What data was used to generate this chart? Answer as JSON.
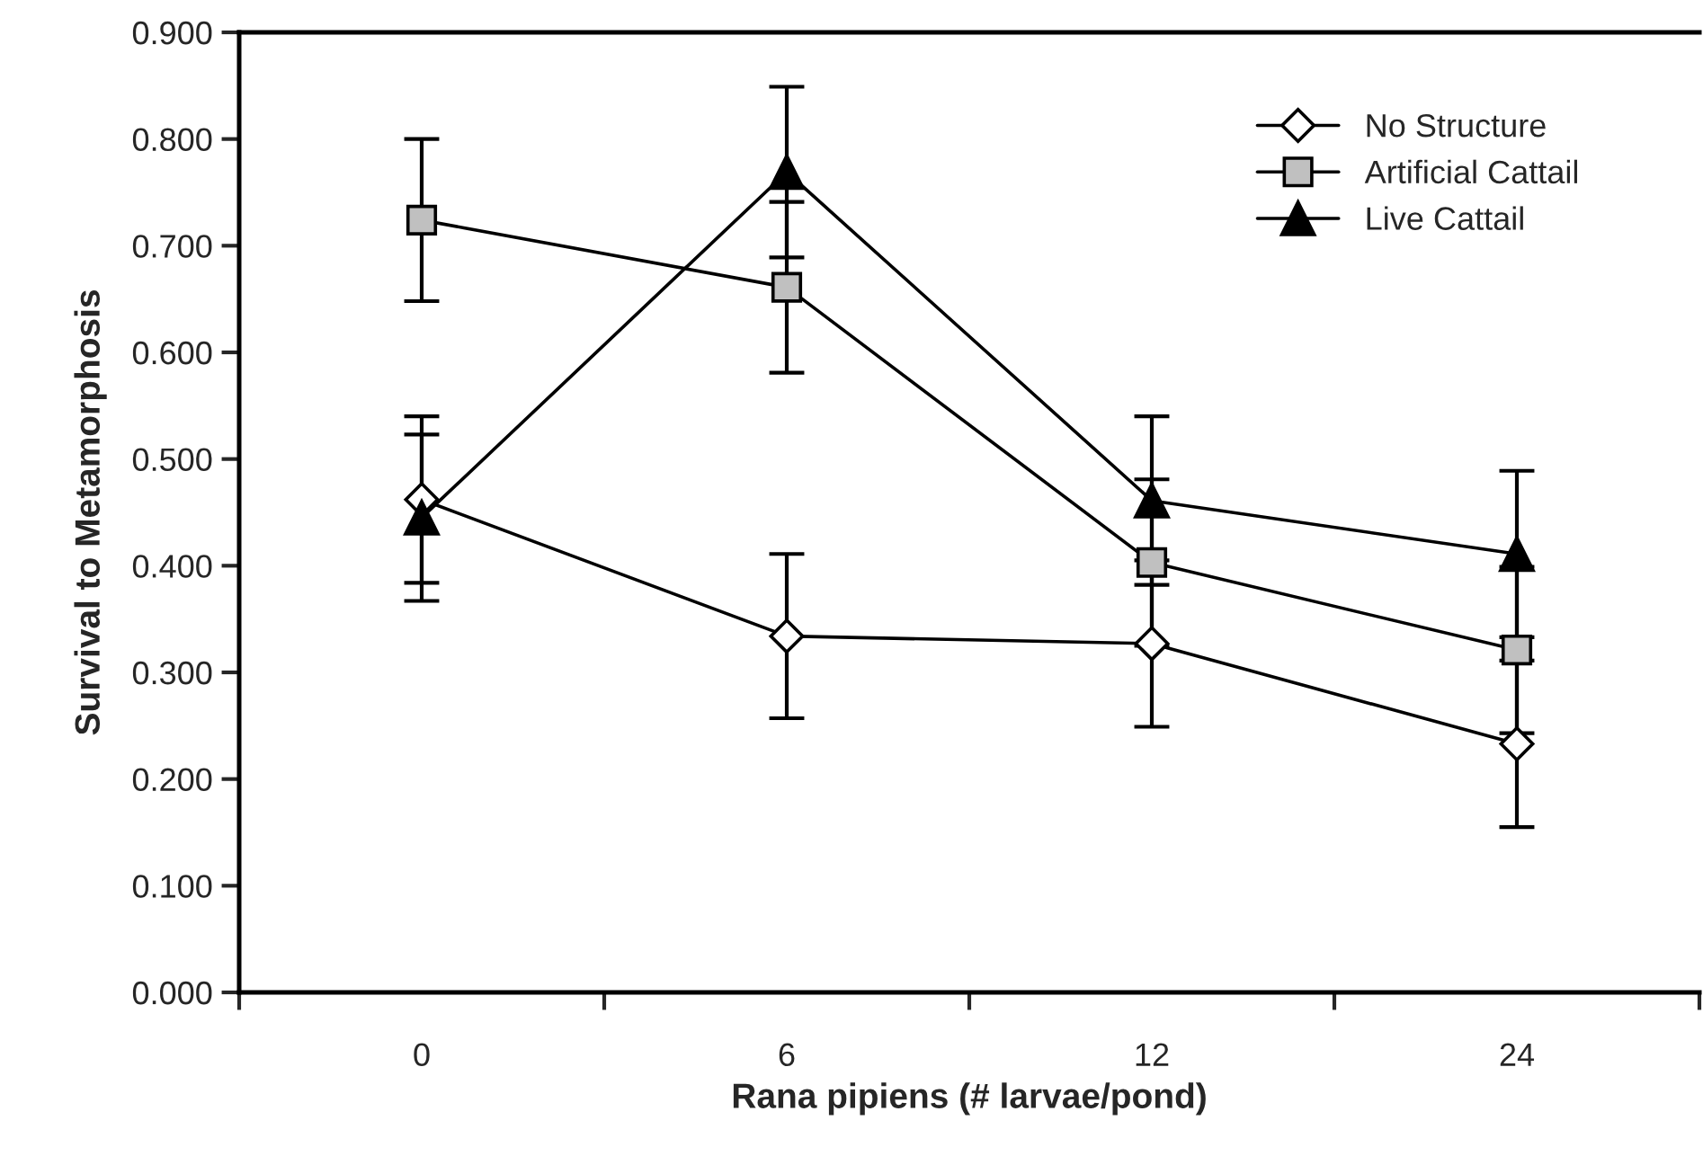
{
  "chart_data": {
    "type": "line",
    "xlabel": "Rana pipiens (# larvae/pond)",
    "ylabel": "Survival to Metamorphosis",
    "categories": [
      "0",
      "6",
      "12",
      "24"
    ],
    "series": [
      {
        "name": "No Structure",
        "color": "#ffffff",
        "marker": "diamond",
        "values": [
          0.462,
          0.334,
          0.327,
          0.233
        ],
        "errors": [
          0.078,
          0.077,
          0.078,
          0.078
        ]
      },
      {
        "name": "Artificial Cattail",
        "color": "#c0c0c0",
        "marker": "square",
        "values": [
          0.724,
          0.661,
          0.403,
          0.321
        ],
        "errors": [
          0.076,
          0.08,
          0.078,
          0.078
        ]
      },
      {
        "name": "Live Cattail",
        "color": "#000000",
        "marker": "triangle",
        "values": [
          0.445,
          0.769,
          0.461,
          0.411
        ],
        "errors": [
          0.078,
          0.08,
          0.079,
          0.078
        ]
      }
    ],
    "ylim": [
      0,
      0.9
    ],
    "yticks": [
      {
        "value": 0,
        "label": "0.000"
      },
      {
        "value": 0.1,
        "label": "0.100"
      },
      {
        "value": 0.2,
        "label": "0.200"
      },
      {
        "value": 0.3,
        "label": "0.300"
      },
      {
        "value": 0.4,
        "label": "0.400"
      },
      {
        "value": 0.5,
        "label": "0.500"
      },
      {
        "value": 0.6,
        "label": "0.600"
      },
      {
        "value": 0.7,
        "label": "0.700"
      },
      {
        "value": 0.8,
        "label": "0.800"
      },
      {
        "value": 0.9,
        "label": "0.900"
      }
    ],
    "grid": false,
    "legend": "top right",
    "line_style": "solid"
  }
}
